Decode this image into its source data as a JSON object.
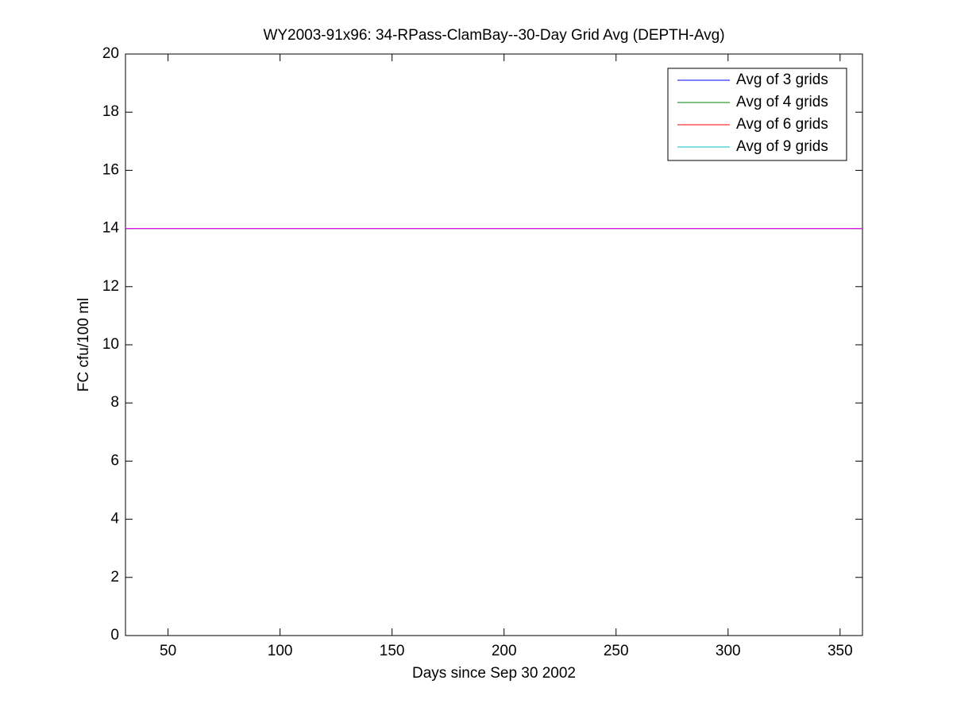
{
  "chart_data": {
    "type": "line",
    "title": "WY2003-91x96: 34-RPass-ClamBay--30-Day Grid Avg (DEPTH-Avg)",
    "x_label": "Days since Sep 30 2002",
    "y_label": "FC cfu/100 ml",
    "x": [
      31,
      360
    ],
    "series": [
      {
        "name": "Avg of 3 grids",
        "color": "#0000ff",
        "values": [
          14,
          14
        ]
      },
      {
        "name": "Avg of 4 grids",
        "color": "#008000",
        "values": [
          14,
          14
        ]
      },
      {
        "name": "Avg of 6 grids",
        "color": "#ff0000",
        "values": [
          14,
          14
        ]
      },
      {
        "name": "Avg of 9 grids",
        "color": "#00bfbf",
        "values": [
          14,
          14
        ]
      },
      {
        "color": "#ff00ff",
        "values": [
          14,
          14
        ]
      }
    ],
    "xlim": [
      31,
      360
    ],
    "xticks": [
      50,
      100,
      150,
      200,
      250,
      300,
      350
    ],
    "ylim": [
      0,
      20
    ],
    "yticks": [
      0,
      2,
      4,
      6,
      8,
      10,
      12,
      14,
      16,
      18,
      20
    ],
    "grid": false,
    "legend": "upper-right"
  }
}
